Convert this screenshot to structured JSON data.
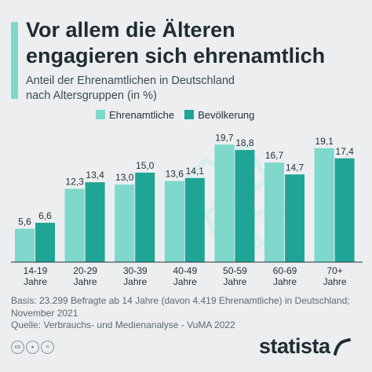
{
  "header": {
    "title_line1": "Vor allem die Älteren",
    "title_line2": "engagieren sich ehrenamtlich",
    "subtitle_line1": "Anteil der Ehrenamtlichen in Deutschland",
    "subtitle_line2": "nach Altersgruppen (in %)"
  },
  "colors": {
    "ehrenamtliche": "#7fd8cc",
    "bevoelkerung": "#1fa595",
    "accent": "#7fd8cc"
  },
  "chart_data": {
    "type": "bar",
    "categories": [
      "14-19 Jahre",
      "20-29 Jahre",
      "30-39 Jahre",
      "40-49 Jahre",
      "50-59 Jahre",
      "60-69 Jahre",
      "70+ Jahre"
    ],
    "category_lines": [
      [
        "14-19",
        "Jahre"
      ],
      [
        "20-29",
        "Jahre"
      ],
      [
        "30-39",
        "Jahre"
      ],
      [
        "40-49",
        "Jahre"
      ],
      [
        "50-59",
        "Jahre"
      ],
      [
        "60-69",
        "Jahre"
      ],
      [
        "70+",
        "Jahre"
      ]
    ],
    "series": [
      {
        "name": "Ehrenamtliche",
        "values": [
          5.6,
          12.3,
          13.0,
          13.6,
          19.7,
          16.7,
          19.1
        ],
        "labels": [
          "5,6",
          "12,3",
          "13,0",
          "13,6",
          "19,7",
          "16,7",
          "19,1"
        ]
      },
      {
        "name": "Bevölkerung",
        "values": [
          6.6,
          13.4,
          15.0,
          14.1,
          18.8,
          14.7,
          17.4
        ],
        "labels": [
          "6,6",
          "13,4",
          "15,0",
          "14,1",
          "18,8",
          "14,7",
          "17,4"
        ]
      }
    ],
    "ylim": [
      0,
      20
    ],
    "legend_position": "top",
    "grid": false
  },
  "footer": {
    "basis": "Basis: 23.299 Befragte ab 14 Jahre (davon 4.419 Ehrenamtliche) in Deutschland;",
    "basis_date": "November 2021",
    "source": "Quelle: Verbrauchs- und Medienanalyse - VuMA 2022"
  },
  "license_icons": [
    "cc-icon",
    "person-icon",
    "equals-icon"
  ],
  "brand": {
    "logo": "statista"
  }
}
